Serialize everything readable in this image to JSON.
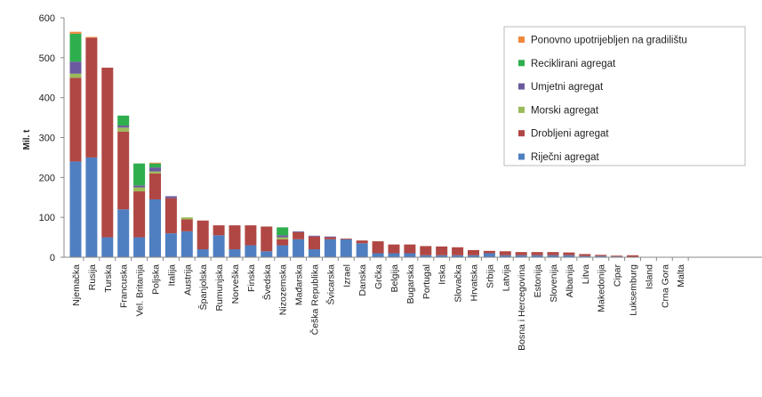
{
  "chart_data": {
    "type": "bar",
    "stacked": true,
    "ylabel": "Mil. t",
    "ylim": [
      0,
      600
    ],
    "yticks": [
      0,
      100,
      200,
      300,
      400,
      500,
      600
    ],
    "grid": false,
    "legend_position": "top-right",
    "categories": [
      "Njemačka",
      "Rusija",
      "Turska",
      "Francuska",
      "Vel. Britanija",
      "Poljska",
      "Italija",
      "Austrija",
      "Španjolska",
      "Rumunjska",
      "Norveška",
      "Finska",
      "Švedska",
      "Nizozemska",
      "Mađarska",
      "Češka Republika",
      "Švicarska",
      "Izrael",
      "Danska",
      "Grčka",
      "Belgija",
      "Bugarska",
      "Portugal",
      "Irska",
      "Slovačka",
      "Hrvatska",
      "Srbija",
      "Latvija",
      "Bosna i Hercegovina",
      "Estonija",
      "Slovenija",
      "Albanija",
      "Litva",
      "Makedonija",
      "Cipar",
      "Luksemburg",
      "Island",
      "Crna Gora",
      "Malta"
    ],
    "series": [
      {
        "name": "Riječni agregat",
        "color": "#4f7fc0",
        "values": [
          240,
          250,
          50,
          120,
          50,
          145,
          60,
          65,
          20,
          55,
          20,
          30,
          15,
          30,
          45,
          20,
          45,
          45,
          35,
          10,
          10,
          10,
          5,
          5,
          5,
          5,
          10,
          5,
          5,
          5,
          5,
          5,
          3,
          3,
          2,
          1,
          0,
          0,
          0
        ]
      },
      {
        "name": "Drobljeni agregat",
        "color": "#b04744",
        "values": [
          210,
          300,
          425,
          195,
          115,
          65,
          88,
          30,
          72,
          25,
          60,
          50,
          62,
          15,
          18,
          32,
          5,
          2,
          7,
          30,
          22,
          22,
          23,
          22,
          20,
          13,
          6,
          10,
          8,
          8,
          8,
          7,
          5,
          3,
          2,
          4,
          1,
          1,
          0
        ]
      },
      {
        "name": "Morski agregat",
        "color": "#9bbb59",
        "values": [
          10,
          0,
          0,
          10,
          10,
          5,
          0,
          5,
          0,
          0,
          0,
          0,
          0,
          5,
          0,
          0,
          0,
          0,
          0,
          0,
          0,
          0,
          0,
          0,
          0,
          0,
          0,
          0,
          0,
          0,
          0,
          0,
          0,
          0,
          0,
          0,
          0,
          0,
          0
        ]
      },
      {
        "name": "Umjetni agregat",
        "color": "#6b5a9e",
        "values": [
          30,
          0,
          0,
          5,
          5,
          10,
          5,
          0,
          0,
          0,
          0,
          0,
          0,
          5,
          2,
          2,
          2,
          0,
          0,
          0,
          0,
          0,
          0,
          0,
          0,
          0,
          0,
          0,
          0,
          0,
          0,
          0,
          0,
          0,
          0,
          0,
          0,
          0,
          0
        ]
      },
      {
        "name": "Reciklirani agregat",
        "color": "#2fae4e",
        "values": [
          70,
          0,
          0,
          25,
          55,
          10,
          0,
          0,
          0,
          0,
          0,
          0,
          0,
          20,
          0,
          0,
          0,
          0,
          0,
          0,
          0,
          0,
          0,
          0,
          0,
          0,
          0,
          0,
          0,
          0,
          0,
          0,
          0,
          0,
          0,
          0,
          0,
          0,
          0
        ]
      },
      {
        "name": "Ponovno upotrijebljen na gradilištu",
        "color": "#f0883e",
        "values": [
          5,
          2,
          0,
          0,
          0,
          2,
          0,
          0,
          0,
          0,
          0,
          0,
          0,
          0,
          0,
          0,
          0,
          0,
          0,
          0,
          0,
          0,
          0,
          0,
          0,
          0,
          0,
          0,
          0,
          0,
          0,
          0,
          0,
          0,
          0,
          0,
          0,
          0,
          0
        ]
      }
    ],
    "legend_order": [
      5,
      4,
      3,
      2,
      1,
      0
    ]
  }
}
